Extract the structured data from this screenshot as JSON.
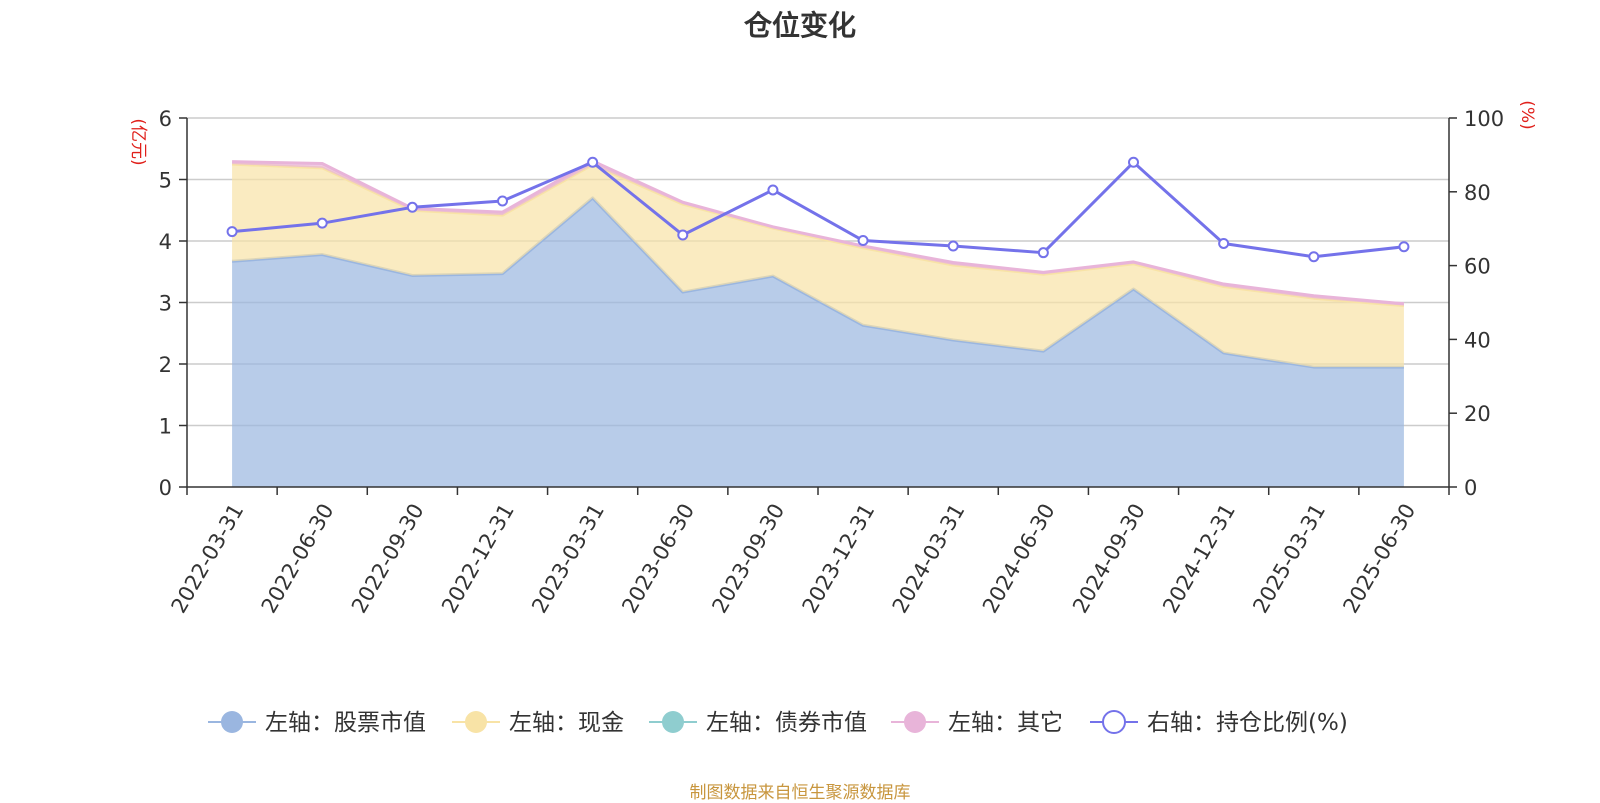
{
  "chart_data": {
    "type": "area",
    "title": "仓位变化",
    "x": [
      "2022-03-31",
      "2022-06-30",
      "2022-09-30",
      "2022-12-31",
      "2023-03-31",
      "2023-06-30",
      "2023-09-30",
      "2023-12-31",
      "2024-03-31",
      "2024-06-30",
      "2024-09-30",
      "2024-12-31",
      "2025-03-31",
      "2025-06-30"
    ],
    "left_axis": {
      "unit": "(亿元)",
      "range": [
        0,
        6
      ],
      "ticks": [
        "0",
        "1",
        "2",
        "3",
        "4",
        "5",
        "6"
      ]
    },
    "right_axis": {
      "unit": "(%)",
      "range": [
        0,
        100
      ],
      "ticks": [
        "0",
        "20",
        "40",
        "60",
        "80",
        "100"
      ]
    },
    "stacked": true,
    "grid": true,
    "legend_position": "bottom",
    "series": [
      {
        "name": "左轴：股票市值",
        "axis": "left",
        "type": "area",
        "color": "#9ab6e0",
        "values": [
          3.67,
          3.78,
          3.44,
          3.47,
          4.7,
          3.17,
          3.43,
          2.63,
          2.39,
          2.21,
          3.22,
          2.18,
          1.95,
          1.95
        ]
      },
      {
        "name": "左轴：现金",
        "axis": "left",
        "type": "area",
        "color": "#f8e3a6",
        "values": [
          1.58,
          1.41,
          1.06,
          0.95,
          0.54,
          1.43,
          0.78,
          1.26,
          1.22,
          1.25,
          0.41,
          1.08,
          1.12,
          1.0
        ]
      },
      {
        "name": "左轴：债券市值",
        "axis": "left",
        "type": "area",
        "color": "#8fcdcf",
        "values": [
          0,
          0,
          0,
          0,
          0,
          0,
          0,
          0,
          0,
          0,
          0,
          0,
          0,
          0
        ]
      },
      {
        "name": "左轴：其它",
        "axis": "left",
        "type": "area",
        "color": "#e8b4d9",
        "values": [
          0.04,
          0.07,
          0.03,
          0.05,
          0.06,
          0.03,
          0.02,
          0.03,
          0.04,
          0.03,
          0.03,
          0.04,
          0.04,
          0.03
        ]
      },
      {
        "name": "右轴：持仓比例(%)",
        "axis": "right",
        "type": "line",
        "color": "#7472ea",
        "values": [
          69.2,
          71.5,
          75.8,
          77.5,
          88.0,
          68.3,
          80.5,
          66.8,
          65.3,
          63.5,
          88.0,
          66.0,
          62.4,
          65.1
        ]
      }
    ]
  },
  "source_note": "制图数据来自恒生聚源数据库"
}
